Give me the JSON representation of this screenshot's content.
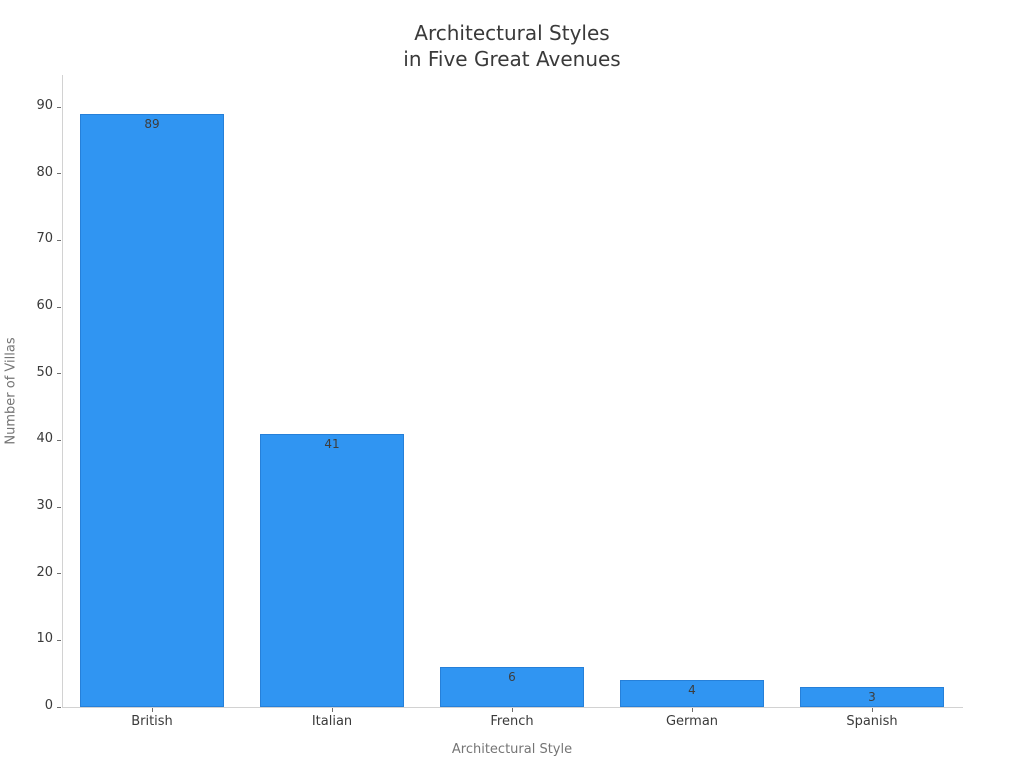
{
  "chart_data": {
    "type": "bar",
    "title": "Architectural Styles\nin Five Great Avenues",
    "title_lines": [
      "Architectural Styles",
      "in Five Great Avenues"
    ],
    "categories": [
      "British",
      "Italian",
      "French",
      "German",
      "Spanish"
    ],
    "values": [
      89,
      41,
      6,
      4,
      3
    ],
    "value_labels": [
      "89",
      "41",
      "6",
      "4",
      "3"
    ],
    "xlabel": "Architectural Style",
    "ylabel": "Number of Villas",
    "yticks": [
      0,
      10,
      20,
      30,
      40,
      50,
      60,
      70,
      80,
      90
    ],
    "ylim": [
      0,
      94.8
    ],
    "grid": false,
    "legend": "none",
    "value_label_position": "inside-top",
    "colors": {
      "bar_fill": "#3095F2",
      "bar_edge": "#2a7fd0",
      "title_text": "#3a3a3a",
      "tick_text": "#3a3a3a",
      "axis_label_text": "#757575",
      "spine": "#d2d2d2",
      "background": "#ffffff"
    }
  }
}
